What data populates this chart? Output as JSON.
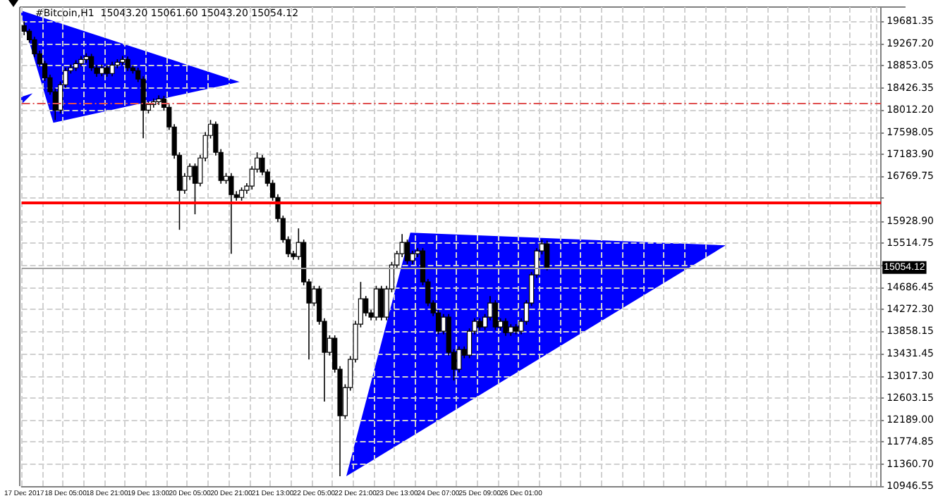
{
  "chart_data": {
    "type": "candlestick",
    "title": "#Bitcoin,H1  15043.20 15061.60 15043.20 15054.12",
    "categories": [
      "17 Dec 2017",
      null,
      null,
      null,
      null,
      null,
      null,
      null,
      "18 Dec 05:00",
      null,
      null,
      null,
      null,
      null,
      null,
      null,
      "18 Dec 21:00",
      null,
      null,
      null,
      null,
      null,
      null,
      null,
      "19 Dec 13:00",
      null,
      null,
      null,
      null,
      null,
      null,
      null,
      "20 Dec 05:00",
      null,
      null,
      null,
      null,
      null,
      null,
      null,
      "20 Dec 21:00",
      null,
      null,
      null,
      null,
      null,
      null,
      null,
      "21 Dec 13:00",
      null,
      null,
      null,
      null,
      null,
      null,
      null,
      "22 Dec 05:00",
      null,
      null,
      null,
      null,
      null,
      null,
      null,
      "22 Dec 21:00",
      null,
      null,
      null,
      null,
      null,
      null,
      null,
      "23 Dec 13:00",
      null,
      null,
      null,
      null,
      null,
      null,
      null,
      "24 Dec 07:00",
      null,
      null,
      null,
      null,
      null,
      null,
      null,
      "25 Dec 09:00",
      null,
      null,
      null,
      null,
      null,
      null,
      null,
      "26 Dec 01:00",
      null,
      null,
      null,
      null,
      null,
      null,
      null,
      null,
      null,
      null,
      null,
      null,
      null,
      null,
      null,
      null,
      null,
      null,
      null,
      null,
      null,
      null,
      null,
      null,
      null,
      null,
      null,
      null,
      null,
      null,
      null,
      null,
      null,
      null,
      null,
      null,
      null,
      null,
      null,
      null,
      null,
      null,
      null,
      null,
      null,
      null,
      null,
      null,
      null,
      null,
      null,
      null,
      null,
      null,
      null,
      null,
      null,
      null,
      null,
      null,
      null,
      null,
      null,
      null,
      null,
      null,
      null,
      null,
      null
    ],
    "ohlc": [
      [
        19600,
        19680,
        19420,
        19496
      ],
      [
        19496,
        19540,
        19280,
        19337
      ],
      [
        19337,
        19390,
        19010,
        19072
      ],
      [
        19072,
        19130,
        18830,
        18887
      ],
      [
        18887,
        18940,
        18560,
        18622
      ],
      [
        18622,
        18680,
        18300,
        18358
      ],
      [
        18358,
        18420,
        17828,
        18013
      ],
      [
        18013,
        18550,
        17950,
        18490
      ],
      [
        18490,
        18810,
        18430,
        18755
      ],
      [
        18755,
        18870,
        18700,
        18808
      ],
      [
        18808,
        18950,
        18750,
        18887
      ],
      [
        18887,
        19030,
        18830,
        18966
      ],
      [
        18966,
        19080,
        18900,
        19019
      ],
      [
        19019,
        19070,
        18750,
        18808
      ],
      [
        18808,
        18860,
        18640,
        18702
      ],
      [
        18702,
        18870,
        18650,
        18808
      ],
      [
        18808,
        18860,
        18640,
        18702
      ],
      [
        18702,
        18920,
        18650,
        18860
      ],
      [
        18860,
        18970,
        18800,
        18913
      ],
      [
        18913,
        19030,
        18860,
        18966
      ],
      [
        18966,
        19020,
        18750,
        18808
      ],
      [
        18808,
        18860,
        18700,
        18755
      ],
      [
        18755,
        18810,
        18540,
        18596
      ],
      [
        18596,
        18650,
        17485,
        18013
      ],
      [
        18013,
        18180,
        17950,
        18119
      ],
      [
        18119,
        18230,
        18060,
        18172
      ],
      [
        18172,
        18290,
        18110,
        18225
      ],
      [
        18225,
        18280,
        18000,
        18066
      ],
      [
        18066,
        18120,
        17640,
        17696
      ],
      [
        17696,
        17750,
        17100,
        17166
      ],
      [
        17166,
        17220,
        15764,
        16505
      ],
      [
        16505,
        16830,
        16440,
        16769
      ],
      [
        16769,
        17010,
        16700,
        16955
      ],
      [
        16955,
        17010,
        16055,
        16637
      ],
      [
        16637,
        17170,
        16580,
        17113
      ],
      [
        17113,
        17600,
        17050,
        17537
      ],
      [
        17537,
        17828,
        17480,
        17749
      ],
      [
        17749,
        17800,
        17160,
        17219
      ],
      [
        17219,
        17280,
        16630,
        16690
      ],
      [
        16690,
        16830,
        16630,
        16769
      ],
      [
        16769,
        16830,
        15313,
        16425
      ],
      [
        16425,
        16490,
        16310,
        16372
      ],
      [
        16372,
        16560,
        16310,
        16505
      ],
      [
        16505,
        16640,
        16440,
        16584
      ],
      [
        16584,
        16960,
        16520,
        16902
      ],
      [
        16902,
        17219,
        16840,
        17113
      ],
      [
        17113,
        17170,
        16790,
        16849
      ],
      [
        16849,
        16900,
        16580,
        16637
      ],
      [
        16637,
        16700,
        16310,
        16372
      ],
      [
        16372,
        16430,
        15910,
        15975
      ],
      [
        15975,
        16030,
        15520,
        15578
      ],
      [
        15578,
        15640,
        15250,
        15313
      ],
      [
        15313,
        15370,
        15200,
        15261
      ],
      [
        15261,
        15790,
        15200,
        15525
      ],
      [
        15525,
        15580,
        14720,
        14784
      ],
      [
        14784,
        14840,
        13328,
        14387
      ],
      [
        14387,
        14710,
        14330,
        14652
      ],
      [
        14652,
        14710,
        13980,
        14043
      ],
      [
        14043,
        14100,
        12535,
        13461
      ],
      [
        13461,
        13780,
        13400,
        13725
      ],
      [
        13725,
        13780,
        13080,
        13143
      ],
      [
        13143,
        13200,
        11131,
        12270
      ],
      [
        12270,
        12860,
        12210,
        12799
      ],
      [
        12799,
        13390,
        12740,
        13328
      ],
      [
        13328,
        14050,
        13270,
        13990
      ],
      [
        13990,
        14784,
        13930,
        14467
      ],
      [
        14467,
        14520,
        14140,
        14202
      ],
      [
        14202,
        14260,
        14060,
        14123
      ],
      [
        14123,
        14710,
        14060,
        14652
      ],
      [
        14652,
        14710,
        14060,
        14123
      ],
      [
        14123,
        14710,
        14060,
        14652
      ],
      [
        14652,
        15160,
        14590,
        15102
      ],
      [
        15102,
        15370,
        15040,
        15313
      ],
      [
        15313,
        15684,
        15250,
        15525
      ],
      [
        15525,
        15580,
        15120,
        15181
      ],
      [
        15181,
        15370,
        15120,
        15313
      ],
      [
        15313,
        15420,
        15250,
        15366
      ],
      [
        15366,
        15420,
        14720,
        14784
      ],
      [
        14784,
        14840,
        14330,
        14387
      ],
      [
        14387,
        14440,
        14140,
        14202
      ],
      [
        14202,
        14260,
        13800,
        13858
      ],
      [
        13858,
        14180,
        13800,
        14123
      ],
      [
        14123,
        14180,
        13400,
        13461
      ],
      [
        13461,
        13520,
        12931,
        13143
      ],
      [
        13143,
        13570,
        13080,
        13514
      ],
      [
        13514,
        13570,
        13350,
        13408
      ],
      [
        13408,
        13910,
        13350,
        13858
      ],
      [
        13858,
        14100,
        13800,
        14043
      ],
      [
        14043,
        14100,
        13880,
        13937
      ],
      [
        13937,
        14180,
        13880,
        14123
      ],
      [
        14123,
        14519,
        14060,
        14387
      ],
      [
        14387,
        14440,
        13880,
        13937
      ],
      [
        13937,
        14100,
        13880,
        14043
      ],
      [
        14043,
        14100,
        13770,
        13831
      ],
      [
        13831,
        13990,
        13770,
        13937
      ],
      [
        13937,
        13990,
        13800,
        13858
      ],
      [
        13858,
        14100,
        13800,
        14043
      ],
      [
        14043,
        14440,
        13980,
        14387
      ],
      [
        14387,
        14970,
        14330,
        14917
      ],
      [
        14917,
        15420,
        14860,
        15366
      ],
      [
        15366,
        15578,
        15300,
        15499
      ],
      [
        15499,
        15560,
        15000,
        15054.12
      ],
      null,
      null,
      null,
      null,
      null,
      null,
      null,
      null,
      null,
      null,
      null,
      null,
      null,
      null,
      null,
      null,
      null,
      null,
      null,
      null,
      null,
      null,
      null,
      null,
      null,
      null,
      null,
      null,
      null,
      null,
      null,
      null,
      null,
      null,
      null,
      null,
      null,
      null,
      null,
      null,
      null,
      null,
      null,
      null,
      null,
      null,
      null,
      null,
      null,
      null,
      null,
      null,
      null,
      null,
      null,
      null,
      null,
      null,
      null,
      null,
      null,
      null,
      null,
      null
    ],
    "ylim": [
      10946.55,
      19950
    ],
    "yticks": [
      19681.35,
      {
        "value": 19267.2,
        "label": "19267.20"
      },
      18853.05,
      18426.35,
      {
        "value": 18012.2,
        "label": "18012.20"
      },
      17598.05,
      {
        "value": 17183.9,
        "label": "17183.90"
      },
      16769.75,
      {
        "value": 16355.6,
        "label": null
      },
      {
        "value": 15928.9,
        "label": "15928.90"
      },
      15514.75,
      {
        "value": 15100.6,
        "label": null
      },
      14686.45,
      {
        "value": 14272.3,
        "label": "14272.30"
      },
      13858.15,
      13431.45,
      {
        "value": 13017.3,
        "label": "13017.30"
      },
      12603.15,
      {
        "value": 12189,
        "label": "12189.00"
      },
      11774.85,
      {
        "value": 11360.7,
        "label": "11360.70"
      },
      10946.55
    ],
    "grid": true,
    "ref_lines": [
      {
        "axis": "y",
        "value": 18150,
        "color": "#e05050",
        "line_style": "dashed"
      },
      {
        "axis": "y",
        "value": 16270,
        "color": "#ff0000",
        "line_style": "solid"
      },
      {
        "axis": "y",
        "value": 15054.12,
        "label": "15054.12",
        "color": "#a0a0a0",
        "line_style": "solid"
      }
    ]
  }
}
